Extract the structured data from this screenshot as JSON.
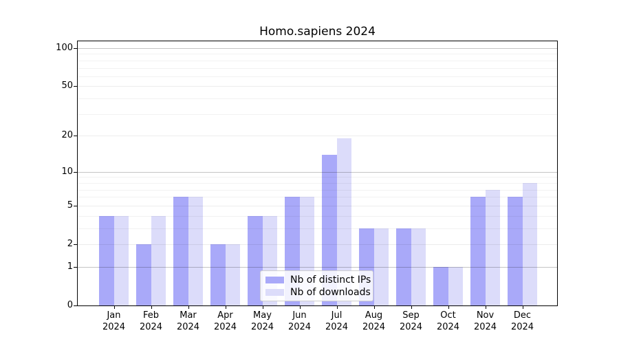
{
  "chart_data": {
    "type": "bar",
    "title": "Homo.sapiens 2024",
    "categories": [
      "Jan 2024",
      "Feb 2024",
      "Mar 2024",
      "Apr 2024",
      "May 2024",
      "Jun 2024",
      "Jul 2024",
      "Aug 2024",
      "Sep 2024",
      "Oct 2024",
      "Nov 2024",
      "Dec 2024"
    ],
    "series": [
      {
        "name": "Nb of distinct IPs",
        "color": "#a9a9f9",
        "values": [
          4,
          2,
          6,
          2,
          4,
          6,
          14,
          3,
          3,
          1,
          6,
          6
        ]
      },
      {
        "name": "Nb of downloads",
        "color": "#dcdcfa",
        "values": [
          4,
          4,
          6,
          2,
          4,
          6,
          19,
          3,
          3,
          1,
          7,
          8
        ]
      }
    ],
    "xlabel": "",
    "ylabel": "",
    "y_scale": "log1p",
    "ylim": [
      0,
      100
    ],
    "y_ticks": [
      0,
      1,
      2,
      5,
      10,
      20,
      50,
      100
    ],
    "y_minor_gridlines": [
      3,
      4,
      6,
      7,
      8,
      9,
      30,
      40,
      60,
      70,
      80,
      90
    ],
    "grid": "horizontal",
    "legend_position": "inside-bottom-center"
  },
  "colors": {
    "background": "#ffffff",
    "axis": "#000000",
    "major_gridline": "#c4c4c4",
    "mid_gridline": "#ececec",
    "minor_gridline": "#f2f2f2",
    "legend_border": "#cfcfcf"
  }
}
